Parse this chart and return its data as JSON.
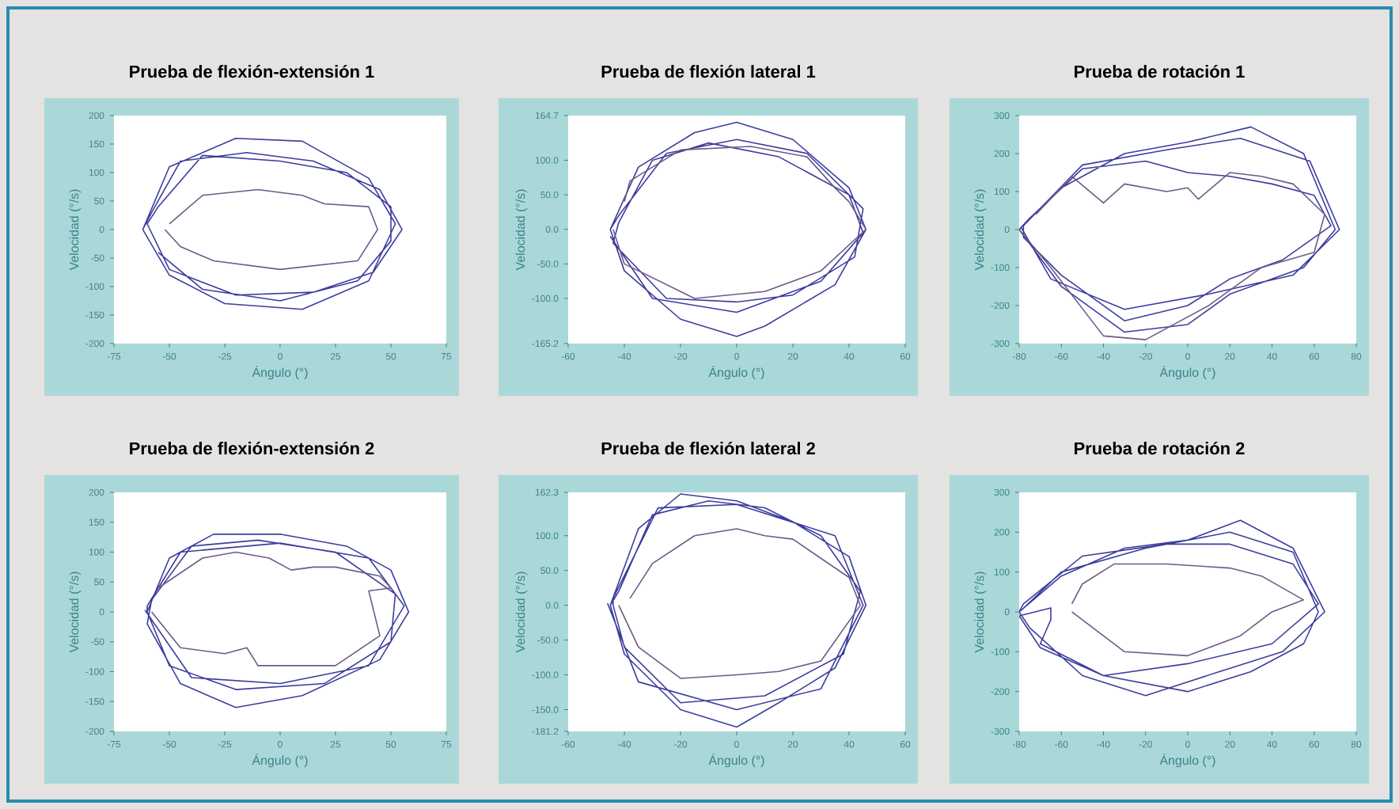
{
  "chart_data": [
    {
      "type": "line",
      "title": "Prueba de flexión-extensión 1",
      "xlabel": "Ángulo (°)",
      "ylabel": "Velocidad (°/s)",
      "xlim": [
        -75,
        75
      ],
      "ylim": [
        -200,
        200
      ],
      "xticks": [
        -75,
        -50,
        -25,
        0,
        25,
        50,
        75
      ],
      "yticks": [
        -200,
        -150,
        -100,
        -50,
        0,
        50,
        100,
        150,
        200
      ],
      "series": [
        {
          "color": "#3d3d9e",
          "x": [
            -62,
            -50,
            -20,
            10,
            40,
            52,
            40,
            10,
            -25,
            -50,
            -62,
            -58,
            -45,
            -15,
            15,
            45,
            55,
            42,
            15,
            -20,
            -50,
            -60,
            -55,
            -35,
            0,
            30,
            50,
            50,
            35,
            0,
            -35,
            -55
          ],
          "values": [
            0,
            110,
            160,
            155,
            90,
            10,
            -90,
            -140,
            -130,
            -80,
            0,
            30,
            120,
            135,
            120,
            70,
            0,
            -75,
            -110,
            -115,
            -70,
            10,
            40,
            130,
            120,
            100,
            40,
            -20,
            -90,
            -125,
            -105,
            -40
          ]
        },
        {
          "color": "#6e5a86",
          "x": [
            -50,
            -35,
            -10,
            10,
            20,
            40,
            44,
            35,
            0,
            -30,
            -45,
            -52
          ],
          "values": [
            10,
            60,
            70,
            60,
            45,
            40,
            0,
            -55,
            -70,
            -55,
            -30,
            0
          ]
        }
      ]
    },
    {
      "type": "line",
      "title": "Prueba de flexión lateral 1",
      "xlabel": "Ángulo (°)",
      "ylabel": "Velocidad (°/s)",
      "xlim": [
        -60,
        60
      ],
      "ylim": [
        -165.2,
        164.7
      ],
      "xticks": [
        -60,
        -40,
        -20,
        0,
        20,
        40,
        60
      ],
      "yticks": [
        -165.2,
        {
          "value": -100,
          "label": "-100.0"
        },
        {
          "value": -50,
          "label": "-50.0"
        },
        {
          "value": 0,
          "label": "0.0"
        },
        {
          "value": 50,
          "label": "50.0"
        },
        {
          "value": 100,
          "label": "100.0"
        },
        164.7
      ],
      "series": [
        {
          "color": "#3d3d9e",
          "x": [
            -45,
            -35,
            -15,
            0,
            20,
            40,
            46,
            35,
            10,
            0,
            -20,
            -40,
            -45,
            -42,
            -25,
            0,
            25,
            45,
            42,
            20,
            0,
            -25,
            -44,
            -42,
            -30,
            -10,
            15,
            40,
            45,
            30,
            0,
            -30,
            -45
          ],
          "values": [
            0,
            90,
            140,
            155,
            130,
            60,
            0,
            -80,
            -140,
            -155,
            -130,
            -60,
            0,
            20,
            110,
            130,
            110,
            30,
            -40,
            -95,
            -105,
            -100,
            -20,
            10,
            100,
            125,
            105,
            50,
            -5,
            -75,
            -120,
            -100,
            -10
          ]
        },
        {
          "color": "#6e5a86",
          "x": [
            -40,
            -38,
            -30,
            -20,
            5,
            25,
            35,
            40,
            46,
            30,
            10,
            -15,
            -40,
            -44
          ],
          "values": [
            40,
            70,
            90,
            115,
            120,
            105,
            60,
            40,
            0,
            -60,
            -90,
            -100,
            -50,
            0
          ]
        }
      ]
    },
    {
      "type": "line",
      "title": "Prueba de rotación 1",
      "xlabel": "Ángulo (°)",
      "ylabel": "Velocidad (°/s)",
      "xlim": [
        -80,
        80
      ],
      "ylim": [
        -300,
        300
      ],
      "xticks": [
        -80,
        -60,
        -40,
        -20,
        0,
        20,
        40,
        60,
        80
      ],
      "yticks": [
        -300,
        -200,
        -100,
        0,
        100,
        200,
        300
      ],
      "series": [
        {
          "color": "#3d3d9e",
          "x": [
            -80,
            -60,
            -30,
            0,
            30,
            55,
            70,
            55,
            20,
            0,
            -30,
            -60,
            -80,
            -75,
            -50,
            -20,
            0,
            20,
            40,
            60,
            68,
            45,
            20,
            0,
            -30,
            -60,
            -78,
            -78,
            -50,
            -10,
            25,
            58,
            72,
            50,
            10,
            -30,
            -65,
            -79
          ],
          "values": [
            0,
            110,
            200,
            230,
            270,
            200,
            0,
            -100,
            -170,
            -250,
            -270,
            -150,
            0,
            30,
            160,
            180,
            150,
            140,
            120,
            90,
            10,
            -80,
            -130,
            -200,
            -240,
            -120,
            -20,
            10,
            170,
            210,
            240,
            180,
            0,
            -120,
            -170,
            -210,
            -130,
            5
          ]
        },
        {
          "color": "#6e5a86",
          "x": [
            -72,
            -55,
            -40,
            -30,
            -10,
            0,
            5,
            20,
            35,
            50,
            65,
            60,
            35,
            10,
            -20,
            -40,
            -65,
            -80
          ],
          "values": [
            40,
            140,
            70,
            120,
            100,
            110,
            80,
            150,
            140,
            120,
            40,
            -60,
            -100,
            -200,
            -290,
            -280,
            -100,
            0
          ]
        }
      ]
    },
    {
      "type": "line",
      "title": "Prueba de flexión-extensión 2",
      "xlabel": "Ángulo (°)",
      "ylabel": "Velocidad (°/s)",
      "xlim": [
        -75,
        75
      ],
      "ylim": [
        -200,
        200
      ],
      "xticks": [
        -75,
        -50,
        -25,
        0,
        25,
        50,
        75
      ],
      "yticks": [
        -200,
        -150,
        -100,
        -50,
        0,
        50,
        100,
        150,
        200
      ],
      "series": [
        {
          "color": "#3d3d9e",
          "x": [
            -60,
            -50,
            -30,
            0,
            30,
            50,
            58,
            45,
            10,
            -20,
            -45,
            -60,
            -58,
            -40,
            -10,
            25,
            52,
            50,
            20,
            -20,
            -50,
            -60,
            -60,
            -45,
            0,
            40,
            56,
            40,
            0,
            -40,
            -61
          ],
          "values": [
            0,
            90,
            130,
            130,
            110,
            70,
            0,
            -80,
            -140,
            -160,
            -120,
            -20,
            20,
            110,
            120,
            100,
            30,
            -50,
            -120,
            -130,
            -90,
            0,
            10,
            100,
            115,
            90,
            10,
            -90,
            -120,
            -110,
            3
          ]
        },
        {
          "color": "#6e5a86",
          "x": [
            -55,
            -35,
            -20,
            -5,
            5,
            15,
            25,
            45,
            50,
            40,
            45,
            25,
            -10,
            -15,
            -25,
            -45,
            -58
          ],
          "values": [
            40,
            90,
            100,
            90,
            70,
            75,
            75,
            60,
            40,
            35,
            -40,
            -90,
            -90,
            -60,
            -70,
            -60,
            0
          ]
        }
      ]
    },
    {
      "type": "line",
      "title": "Prueba de flexión lateral 2",
      "xlabel": "Ángulo (°)",
      "ylabel": "Velocidad (°/s)",
      "xlim": [
        -60,
        60
      ],
      "ylim": [
        -181.2,
        162.3
      ],
      "xticks": [
        -60,
        -40,
        -20,
        0,
        20,
        40,
        60
      ],
      "yticks": [
        -181.2,
        {
          "value": -150,
          "label": "-150.0"
        },
        {
          "value": -100,
          "label": "-100.0"
        },
        {
          "value": -50,
          "label": "-50.0"
        },
        {
          "value": 0,
          "label": "0.0"
        },
        {
          "value": 50,
          "label": "50.0"
        },
        {
          "value": 100,
          "label": "100.0"
        },
        162.3
      ],
      "series": [
        {
          "color": "#3d3d9e",
          "x": [
            -45,
            -35,
            -20,
            0,
            20,
            40,
            46,
            35,
            15,
            0,
            -20,
            -40,
            -45,
            -42,
            -30,
            -10,
            10,
            30,
            44,
            38,
            10,
            -20,
            -40,
            -44,
            -44,
            -28,
            0,
            35,
            45,
            30,
            0,
            -35,
            -46
          ],
          "values": [
            0,
            110,
            160,
            150,
            120,
            70,
            0,
            -90,
            -140,
            -175,
            -150,
            -70,
            0,
            20,
            130,
            150,
            140,
            100,
            20,
            -70,
            -130,
            -140,
            -60,
            0,
            10,
            140,
            145,
            100,
            0,
            -120,
            -150,
            -110,
            3
          ]
        },
        {
          "color": "#6e5a86",
          "x": [
            -38,
            -30,
            -15,
            0,
            10,
            20,
            40,
            44,
            30,
            15,
            0,
            -20,
            -35,
            -42
          ],
          "values": [
            10,
            60,
            100,
            110,
            100,
            95,
            40,
            0,
            -80,
            -95,
            -100,
            -105,
            -60,
            0
          ]
        }
      ]
    },
    {
      "type": "line",
      "title": "Prueba de rotación 2",
      "xlabel": "Ángulo (°)",
      "ylabel": "Velocidad (°/s)",
      "xlim": [
        -80,
        80
      ],
      "ylim": [
        -300,
        300
      ],
      "xticks": [
        -80,
        -60,
        -40,
        -20,
        0,
        20,
        40,
        60,
        80
      ],
      "yticks": [
        -300,
        -200,
        -100,
        0,
        100,
        200,
        300
      ],
      "series": [
        {
          "color": "#3d3d9e",
          "x": [
            -80,
            -60,
            -30,
            0,
            25,
            50,
            65,
            45,
            15,
            -20,
            -50,
            -75,
            -80,
            -78,
            -50,
            -10,
            20,
            50,
            62,
            40,
            0,
            -40,
            -70,
            -80,
            -65,
            -65,
            -70,
            -40,
            0,
            30,
            55,
            62,
            50,
            20,
            -20,
            -60,
            -79
          ],
          "values": [
            0,
            90,
            160,
            180,
            230,
            160,
            0,
            -100,
            -150,
            -210,
            -160,
            -40,
            0,
            20,
            140,
            170,
            170,
            120,
            20,
            -80,
            -130,
            -160,
            -90,
            -10,
            10,
            -20,
            -80,
            -160,
            -200,
            -150,
            -80,
            0,
            150,
            200,
            160,
            100,
            4
          ]
        },
        {
          "color": "#6e5a86",
          "x": [
            -55,
            -50,
            -35,
            -10,
            20,
            35,
            55,
            40,
            25,
            0,
            -30,
            -45,
            -55
          ],
          "values": [
            20,
            70,
            120,
            120,
            110,
            90,
            30,
            0,
            -60,
            -110,
            -100,
            -40,
            0
          ]
        }
      ]
    }
  ]
}
